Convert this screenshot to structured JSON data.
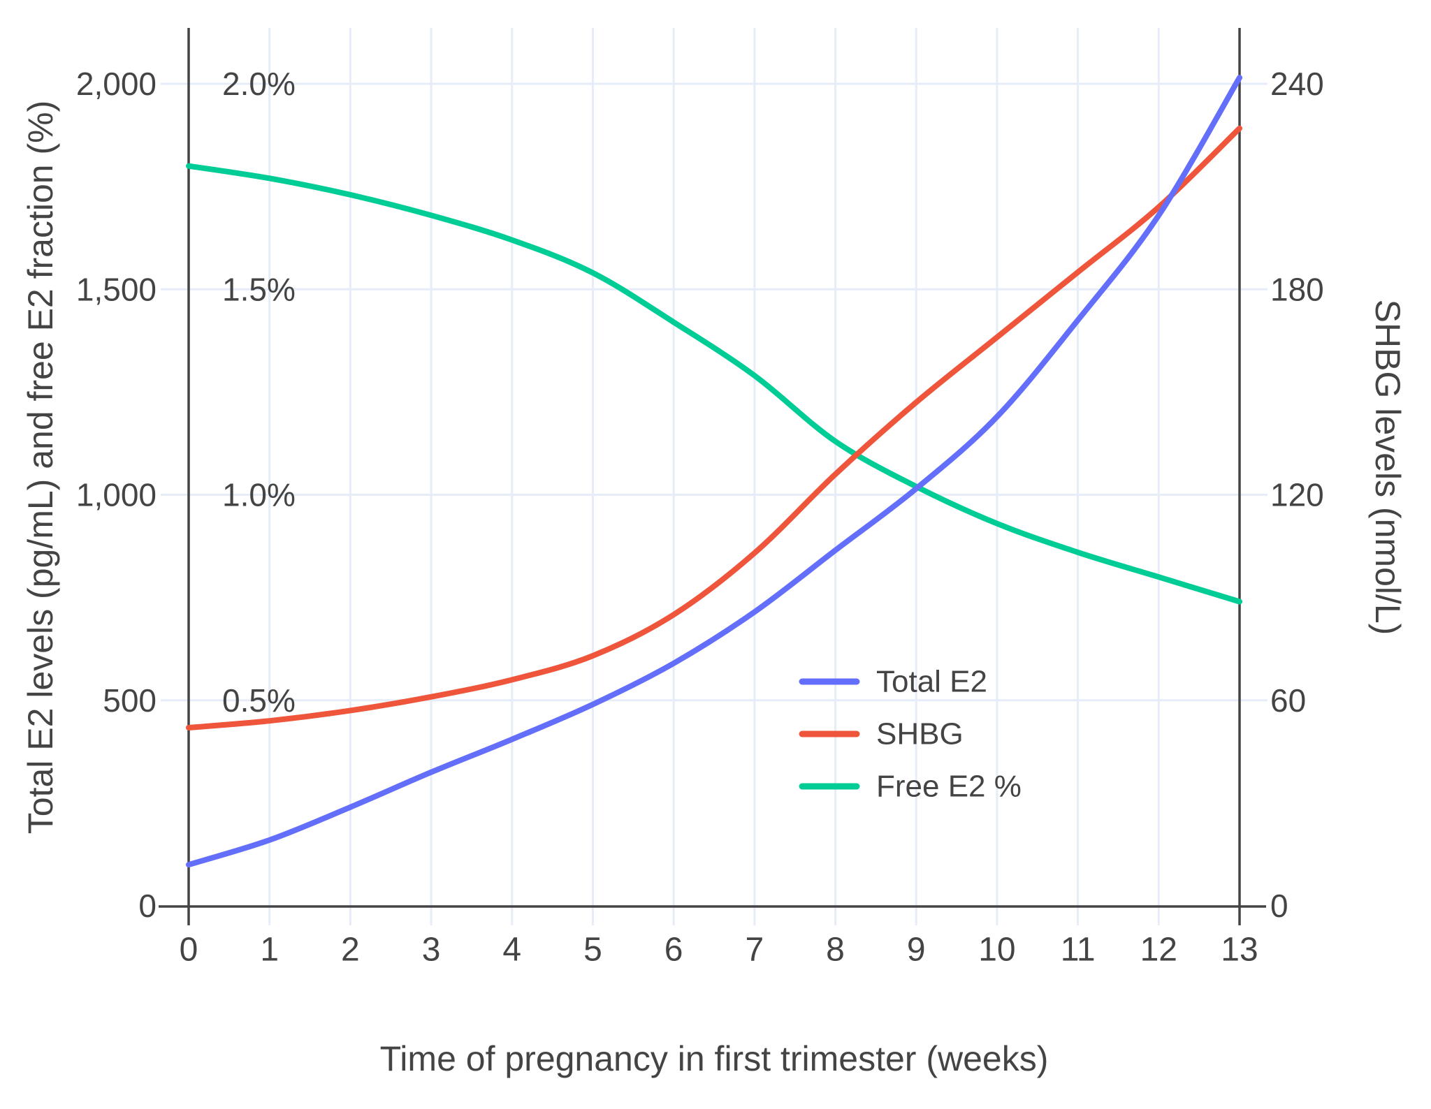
{
  "chart_data": {
    "type": "line",
    "title": "",
    "xlabel": "Time of pregnancy in first trimester (weeks)",
    "ylabel_left": "Total E2 levels (pg/mL) and free E2 fraction (%)",
    "ylabel_right": "SHBG levels (nmol/L)",
    "x": [
      0,
      1,
      2,
      3,
      4,
      5,
      6,
      7,
      8,
      9,
      10,
      11,
      12,
      13
    ],
    "x_tick_labels": [
      "0",
      "1",
      "2",
      "3",
      "4",
      "5",
      "6",
      "7",
      "8",
      "9",
      "10",
      "11",
      "12",
      "13"
    ],
    "xlim": [
      0,
      13
    ],
    "ylim_left": [
      0,
      2137
    ],
    "ylim_right": [
      0,
      256
    ],
    "grid": true,
    "legend_position": "center-right",
    "series": [
      {
        "name": "Total E2",
        "axis": "left",
        "unit": "pg/mL",
        "color": "#636EFA",
        "values": [
          100,
          160,
          240,
          325,
          405,
          490,
          590,
          715,
          865,
          1015,
          1190,
          1425,
          1680,
          2015
        ]
      },
      {
        "name": "SHBG",
        "axis": "right",
        "unit": "nmol/L",
        "color": "#EF553B",
        "values": [
          52,
          54,
          57,
          61,
          66,
          73,
          85,
          103,
          126,
          147,
          166,
          185,
          204,
          227
        ]
      },
      {
        "name": "Free E2 %",
        "axis": "percent",
        "unit": "%",
        "color": "#00CC96",
        "values": [
          1.8,
          1.77,
          1.73,
          1.68,
          1.62,
          1.54,
          1.42,
          1.29,
          1.13,
          1.02,
          0.93,
          0.86,
          0.8,
          0.74
        ]
      }
    ],
    "y_ticks": [
      {
        "left_value": 0,
        "left_label": "0",
        "right_label": "0",
        "pct_label": null
      },
      {
        "left_value": 500,
        "left_label": "500",
        "right_label": "60",
        "pct_label": "0.5%"
      },
      {
        "left_value": 1000,
        "left_label": "1,000",
        "right_label": "120",
        "pct_label": "1.0%"
      },
      {
        "left_value": 1500,
        "left_label": "1,500",
        "right_label": "180",
        "pct_label": "1.5%"
      },
      {
        "left_value": 2000,
        "left_label": "2,000",
        "right_label": "240",
        "pct_label": "2.0%"
      }
    ]
  },
  "style": {
    "accent_blue": "#636EFA",
    "accent_red": "#EF553B",
    "accent_green": "#00CC96",
    "grid_color": "#E6ECF8",
    "axis_color": "#444444",
    "text_color": "#444444",
    "background": "#FFFFFF"
  }
}
